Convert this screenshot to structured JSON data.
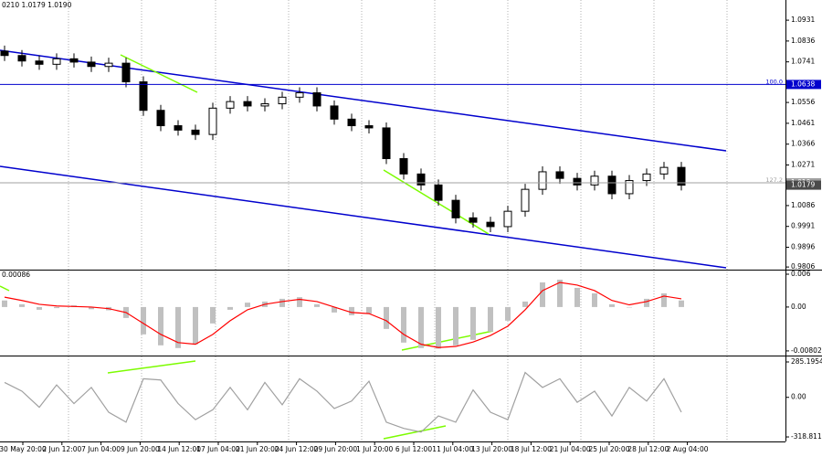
{
  "chart_data": [
    {
      "type": "candlestick",
      "title": "0210 1.0179 1.0190",
      "color": "#000000",
      "open": [
        1.079,
        1.077,
        1.0745,
        1.073,
        1.0755,
        1.074,
        1.072,
        1.0735,
        1.065,
        1.052,
        1.045,
        1.043,
        1.041,
        1.053,
        1.056,
        1.054,
        1.055,
        1.058,
        1.06,
        1.054,
        1.048,
        1.045,
        1.044,
        1.03,
        1.023,
        1.018,
        1.011,
        1.003,
        1.001,
        0.999,
        1.006,
        1.016,
        1.024,
        1.021,
        1.018,
        1.022,
        1.014,
        1.02,
        1.023,
        1.026
      ],
      "high": [
        1.0815,
        1.0795,
        1.077,
        1.078,
        1.078,
        1.0765,
        1.076,
        1.076,
        1.0675,
        1.0545,
        1.0475,
        1.0455,
        1.0555,
        1.0585,
        1.0585,
        1.0575,
        1.0605,
        1.0625,
        1.0625,
        1.0565,
        1.0505,
        1.0475,
        1.0465,
        1.0325,
        1.0255,
        1.0205,
        1.0135,
        1.0055,
        1.0035,
        1.0085,
        1.0185,
        1.0265,
        1.0265,
        1.0235,
        1.0245,
        1.0245,
        1.0225,
        1.0255,
        1.0285,
        1.0285
      ],
      "low": [
        1.0745,
        1.072,
        1.0705,
        1.0705,
        1.0715,
        1.0695,
        1.0695,
        1.0625,
        1.0495,
        1.0425,
        1.0405,
        1.0385,
        1.0385,
        1.0505,
        1.0515,
        1.0515,
        1.0525,
        1.0555,
        1.0515,
        1.0455,
        1.0425,
        1.0415,
        1.0275,
        1.0205,
        1.0155,
        1.0085,
        1.0005,
        0.9985,
        0.9965,
        0.9965,
        1.0035,
        1.0135,
        1.0185,
        1.0155,
        1.0155,
        1.0115,
        1.0115,
        1.0175,
        1.0205,
        1.0155
      ],
      "close": [
        1.077,
        1.0745,
        1.073,
        1.0755,
        1.074,
        1.072,
        1.0735,
        1.065,
        1.052,
        1.045,
        1.043,
        1.041,
        1.053,
        1.056,
        1.054,
        1.055,
        1.058,
        1.06,
        1.054,
        1.048,
        1.045,
        1.044,
        1.03,
        1.023,
        1.018,
        1.011,
        1.003,
        1.001,
        0.999,
        1.006,
        1.016,
        1.024,
        1.021,
        1.018,
        1.022,
        1.014,
        1.02,
        1.023,
        1.026,
        1.0179
      ],
      "ylim": [
        0.9794,
        1.1023
      ],
      "yticks": [
        1.0931,
        1.0836,
        1.0741,
        1.0556,
        1.0461,
        1.0366,
        1.0271,
        1.0086,
        0.9991,
        0.9896,
        0.9806
      ],
      "price_lines": [
        {
          "value": 1.0638,
          "label": "100.0",
          "color": "#0000cd"
        },
        {
          "value": 1.019,
          "label": "127.2",
          "color": "#a0a0a0"
        }
      ],
      "current_price": 1.0179
    },
    {
      "type": "macd",
      "title": "0.00086",
      "series": [
        {
          "kind": "bar",
          "color": "#c0c0c0",
          "values": [
            0.0012,
            0.0005,
            -0.0005,
            -0.0002,
            0.0003,
            -0.0004,
            -0.0006,
            -0.002,
            -0.005,
            -0.007,
            -0.0075,
            -0.0068,
            -0.003,
            -0.0005,
            0.0008,
            0.001,
            0.0015,
            0.0018,
            0.0005,
            -0.001,
            -0.0015,
            -0.0012,
            -0.004,
            -0.0065,
            -0.0075,
            -0.0076,
            -0.007,
            -0.006,
            -0.0045,
            -0.0025,
            0.001,
            0.0045,
            0.005,
            0.0035,
            0.0025,
            0.0005,
            0.0,
            0.0015,
            0.0025,
            0.0012
          ]
        },
        {
          "kind": "line",
          "color": "#ff0000",
          "values": [
            0.0018,
            0.0012,
            0.0005,
            0.0002,
            0.0001,
            0.0,
            -0.0003,
            -0.001,
            -0.003,
            -0.005,
            -0.0065,
            -0.0068,
            -0.005,
            -0.0025,
            -0.0005,
            0.0005,
            0.001,
            0.0014,
            0.001,
            0.0,
            -0.001,
            -0.0012,
            -0.0025,
            -0.005,
            -0.0068,
            -0.0074,
            -0.0072,
            -0.0064,
            -0.0052,
            -0.0035,
            -0.0005,
            0.003,
            0.0045,
            0.004,
            0.003,
            0.0012,
            0.0004,
            0.001,
            0.002,
            0.0015
          ]
        }
      ],
      "ylim": [
        -0.0087,
        0.0065
      ],
      "yticks": [
        0.006,
        {
          "value": 0,
          "label": "0.00"
        },
        -0.00802
      ]
    },
    {
      "type": "line",
      "series": [
        {
          "kind": "line",
          "color": "#a0a0a0",
          "values": [
            120,
            50,
            -80,
            100,
            -50,
            80,
            -120,
            -200,
            150,
            140,
            -50,
            -180,
            -100,
            80,
            -100,
            120,
            -60,
            150,
            50,
            -90,
            -30,
            130,
            -200,
            -250,
            -280,
            -150,
            -200,
            60,
            -120,
            -180,
            200,
            80,
            150,
            -40,
            50,
            -150,
            80,
            -30,
            150,
            -120
          ]
        }
      ],
      "ylim": [
        -348,
        322
      ],
      "yticks": [
        285.1954,
        {
          "value": 0,
          "label": "0.00"
        },
        -318.8116
      ]
    }
  ],
  "time_axis": [
    "30 May 20:00",
    "2 Jun 12:00",
    "7 Jun 04:00",
    "9 Jun 20:00",
    "14 Jun 12:00",
    "17 Jun 04:00",
    "21 Jun 20:00",
    "24 Jun 12:00",
    "29 Jun 20:00",
    "1 Jul 20:00",
    "6 Jul 12:00",
    "11 Jul 04:00",
    "13 Jul 20:00",
    "18 Jul 12:00",
    "21 Jul 04:00",
    "25 Jul 20:00",
    "28 Jul 12:00",
    "2 Aug 04:00"
  ]
}
